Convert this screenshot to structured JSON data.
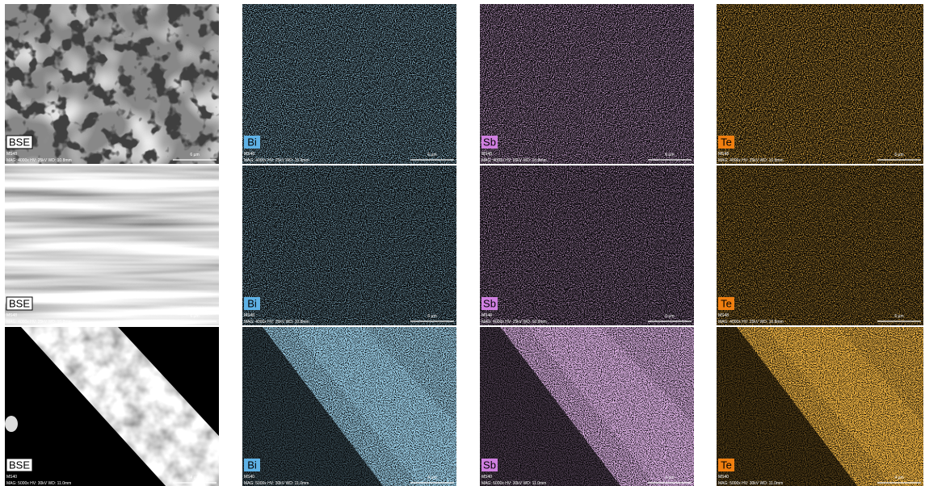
{
  "columns": [
    {
      "label": "BSE",
      "color": "#ffffff"
    },
    {
      "label": "Bi",
      "color": "#5fb2e6"
    },
    {
      "label": "Sb",
      "color": "#cf7fe0"
    },
    {
      "label": "Te",
      "color": "#f07f10"
    }
  ],
  "rows": [
    {
      "sample": "MS48",
      "info": "MAG: 4000x  HV: 25kV  WD: 10.8mm",
      "scale": "6 µm"
    },
    {
      "sample": "MS48",
      "info": "MAG: 4000x  HV: 25kV  WD: 10.8mm",
      "scale": "6 µm"
    },
    {
      "sample": "MS40",
      "info": "MAG: 5000x  HV: 30kV  WD: 11.0mm",
      "scale": "4 µm"
    }
  ]
}
